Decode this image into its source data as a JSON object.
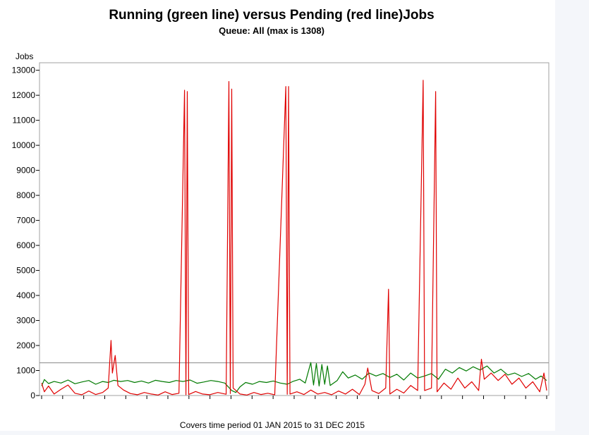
{
  "chart_data": {
    "type": "line",
    "title": "Running (green line) versus Pending (red line)Jobs",
    "subtitle": "Queue: All (max is 1308)",
    "ylabel": "Jobs",
    "caption": "Covers time period 01 JAN 2015 to 31 DEC 2015",
    "ylim": [
      0,
      13300
    ],
    "y_ticks": [
      0,
      1000,
      2000,
      3000,
      4000,
      5000,
      6000,
      7000,
      8000,
      9000,
      10000,
      11000,
      12000,
      13000
    ],
    "x_range": [
      "2015-01-01",
      "2015-12-31"
    ],
    "reference_line": {
      "value": 1308
    },
    "series": [
      {
        "name": "Running",
        "color": "#007a00",
        "points": [
          [
            "2015-01-01",
            380
          ],
          [
            "2015-01-03",
            640
          ],
          [
            "2015-01-06",
            480
          ],
          [
            "2015-01-10",
            560
          ],
          [
            "2015-01-15",
            500
          ],
          [
            "2015-01-20",
            620
          ],
          [
            "2015-01-25",
            470
          ],
          [
            "2015-01-30",
            540
          ],
          [
            "2015-02-04",
            600
          ],
          [
            "2015-02-09",
            450
          ],
          [
            "2015-02-14",
            560
          ],
          [
            "2015-02-18",
            520
          ],
          [
            "2015-02-22",
            610
          ],
          [
            "2015-02-27",
            560
          ],
          [
            "2015-03-04",
            600
          ],
          [
            "2015-03-09",
            520
          ],
          [
            "2015-03-14",
            580
          ],
          [
            "2015-03-19",
            500
          ],
          [
            "2015-03-24",
            610
          ],
          [
            "2015-03-29",
            560
          ],
          [
            "2015-04-03",
            520
          ],
          [
            "2015-04-08",
            600
          ],
          [
            "2015-04-13",
            560
          ],
          [
            "2015-04-18",
            620
          ],
          [
            "2015-04-23",
            490
          ],
          [
            "2015-04-28",
            540
          ],
          [
            "2015-05-03",
            600
          ],
          [
            "2015-05-08",
            560
          ],
          [
            "2015-05-13",
            500
          ],
          [
            "2015-05-18",
            200
          ],
          [
            "2015-05-21",
            120
          ],
          [
            "2015-05-24",
            350
          ],
          [
            "2015-05-28",
            520
          ],
          [
            "2015-06-02",
            450
          ],
          [
            "2015-06-07",
            560
          ],
          [
            "2015-06-12",
            520
          ],
          [
            "2015-06-17",
            580
          ],
          [
            "2015-06-22",
            500
          ],
          [
            "2015-06-27",
            450
          ],
          [
            "2015-07-01",
            560
          ],
          [
            "2015-07-06",
            650
          ],
          [
            "2015-07-10",
            500
          ],
          [
            "2015-07-14",
            1320
          ],
          [
            "2015-07-16",
            420
          ],
          [
            "2015-07-18",
            1280
          ],
          [
            "2015-07-20",
            380
          ],
          [
            "2015-07-22",
            1240
          ],
          [
            "2015-07-24",
            450
          ],
          [
            "2015-07-26",
            1180
          ],
          [
            "2015-07-28",
            400
          ],
          [
            "2015-08-02",
            600
          ],
          [
            "2015-08-06",
            950
          ],
          [
            "2015-08-10",
            700
          ],
          [
            "2015-08-15",
            820
          ],
          [
            "2015-08-20",
            650
          ],
          [
            "2015-08-25",
            900
          ],
          [
            "2015-08-30",
            780
          ],
          [
            "2015-09-04",
            880
          ],
          [
            "2015-09-09",
            720
          ],
          [
            "2015-09-14",
            850
          ],
          [
            "2015-09-19",
            620
          ],
          [
            "2015-09-24",
            900
          ],
          [
            "2015-09-29",
            700
          ],
          [
            "2015-10-04",
            780
          ],
          [
            "2015-10-09",
            880
          ],
          [
            "2015-10-14",
            650
          ],
          [
            "2015-10-19",
            1050
          ],
          [
            "2015-10-24",
            900
          ],
          [
            "2015-10-29",
            1120
          ],
          [
            "2015-11-03",
            980
          ],
          [
            "2015-11-08",
            1150
          ],
          [
            "2015-11-13",
            1020
          ],
          [
            "2015-11-18",
            1180
          ],
          [
            "2015-11-23",
            900
          ],
          [
            "2015-11-28",
            1050
          ],
          [
            "2015-12-03",
            820
          ],
          [
            "2015-12-08",
            900
          ],
          [
            "2015-12-13",
            760
          ],
          [
            "2015-12-18",
            880
          ],
          [
            "2015-12-23",
            650
          ],
          [
            "2015-12-27",
            780
          ],
          [
            "2015-12-31",
            600
          ]
        ]
      },
      {
        "name": "Pending",
        "color": "#e00000",
        "points": [
          [
            "2015-01-01",
            500
          ],
          [
            "2015-01-03",
            150
          ],
          [
            "2015-01-06",
            380
          ],
          [
            "2015-01-10",
            60
          ],
          [
            "2015-01-15",
            250
          ],
          [
            "2015-01-20",
            420
          ],
          [
            "2015-01-25",
            90
          ],
          [
            "2015-01-30",
            30
          ],
          [
            "2015-02-04",
            180
          ],
          [
            "2015-02-09",
            40
          ],
          [
            "2015-02-14",
            120
          ],
          [
            "2015-02-18",
            300
          ],
          [
            "2015-02-20",
            2200
          ],
          [
            "2015-02-21",
            900
          ],
          [
            "2015-02-23",
            1600
          ],
          [
            "2015-02-25",
            400
          ],
          [
            "2015-03-01",
            220
          ],
          [
            "2015-03-06",
            80
          ],
          [
            "2015-03-11",
            30
          ],
          [
            "2015-03-16",
            120
          ],
          [
            "2015-03-21",
            60
          ],
          [
            "2015-03-26",
            20
          ],
          [
            "2015-03-31",
            150
          ],
          [
            "2015-04-05",
            40
          ],
          [
            "2015-04-10",
            90
          ],
          [
            "2015-04-14",
            12200
          ],
          [
            "2015-04-15",
            30
          ],
          [
            "2015-04-16",
            12150
          ],
          [
            "2015-04-17",
            40
          ],
          [
            "2015-04-22",
            160
          ],
          [
            "2015-04-27",
            60
          ],
          [
            "2015-05-02",
            30
          ],
          [
            "2015-05-08",
            120
          ],
          [
            "2015-05-14",
            50
          ],
          [
            "2015-05-16",
            12550
          ],
          [
            "2015-05-17",
            80
          ],
          [
            "2015-05-18",
            12250
          ],
          [
            "2015-05-19",
            300
          ],
          [
            "2015-05-24",
            60
          ],
          [
            "2015-05-29",
            20
          ],
          [
            "2015-06-03",
            120
          ],
          [
            "2015-06-08",
            40
          ],
          [
            "2015-06-13",
            90
          ],
          [
            "2015-06-18",
            30
          ],
          [
            "2015-06-26",
            12350
          ],
          [
            "2015-06-27",
            50
          ],
          [
            "2015-06-28",
            12350
          ],
          [
            "2015-06-29",
            60
          ],
          [
            "2015-07-04",
            150
          ],
          [
            "2015-07-09",
            40
          ],
          [
            "2015-07-14",
            220
          ],
          [
            "2015-07-19",
            60
          ],
          [
            "2015-07-24",
            120
          ],
          [
            "2015-07-29",
            30
          ],
          [
            "2015-08-03",
            180
          ],
          [
            "2015-08-08",
            60
          ],
          [
            "2015-08-13",
            250
          ],
          [
            "2015-08-18",
            40
          ],
          [
            "2015-08-22",
            450
          ],
          [
            "2015-08-24",
            1100
          ],
          [
            "2015-08-27",
            200
          ],
          [
            "2015-09-01",
            80
          ],
          [
            "2015-09-06",
            300
          ],
          [
            "2015-09-08",
            4250
          ],
          [
            "2015-09-09",
            60
          ],
          [
            "2015-09-14",
            250
          ],
          [
            "2015-09-19",
            100
          ],
          [
            "2015-09-24",
            400
          ],
          [
            "2015-09-29",
            200
          ],
          [
            "2015-10-03",
            12600
          ],
          [
            "2015-10-04",
            200
          ],
          [
            "2015-10-09",
            300
          ],
          [
            "2015-10-12",
            12150
          ],
          [
            "2015-10-13",
            150
          ],
          [
            "2015-10-18",
            500
          ],
          [
            "2015-10-23",
            250
          ],
          [
            "2015-10-28",
            700
          ],
          [
            "2015-11-02",
            300
          ],
          [
            "2015-11-07",
            550
          ],
          [
            "2015-11-12",
            200
          ],
          [
            "2015-11-14",
            1450
          ],
          [
            "2015-11-16",
            650
          ],
          [
            "2015-11-21",
            900
          ],
          [
            "2015-11-26",
            600
          ],
          [
            "2015-12-01",
            850
          ],
          [
            "2015-12-06",
            450
          ],
          [
            "2015-12-11",
            700
          ],
          [
            "2015-12-16",
            300
          ],
          [
            "2015-12-21",
            550
          ],
          [
            "2015-12-26",
            150
          ],
          [
            "2015-12-29",
            900
          ],
          [
            "2015-12-31",
            200
          ]
        ]
      }
    ]
  }
}
